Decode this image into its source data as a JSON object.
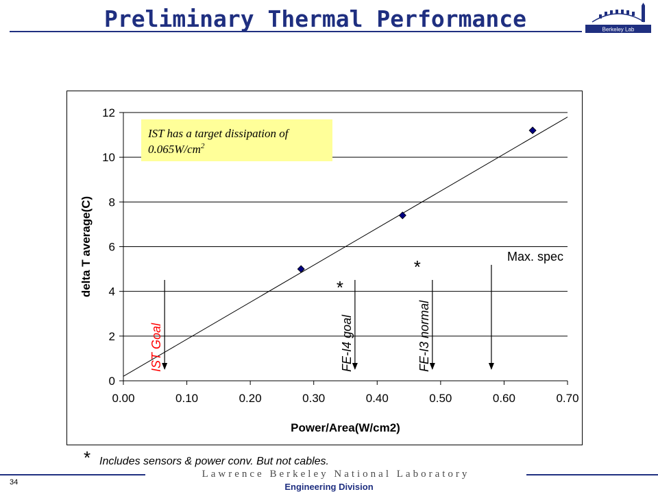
{
  "slide": {
    "title": "Preliminary Thermal Performance",
    "page_number": "34",
    "footer_division": "Engineering Division",
    "lab_banner": "Lawrence Berkeley National Laboratory",
    "logo_text": "Berkeley Lab",
    "footnote_star": "*",
    "footnote_text": "Includes sensors & power conv. But not cables."
  },
  "chart_data": {
    "type": "scatter",
    "xlabel": "Power/Area(W/cm2)",
    "ylabel": "delta T average(C)",
    "xlim": [
      0,
      0.7
    ],
    "ylim": [
      0,
      12
    ],
    "x_ticks": [
      "0.00",
      "0.10",
      "0.20",
      "0.30",
      "0.40",
      "0.50",
      "0.60",
      "0.70"
    ],
    "y_ticks": [
      "0",
      "2",
      "4",
      "6",
      "8",
      "10",
      "12"
    ],
    "grid": "horizontal",
    "series": [
      {
        "x": [
          0.28,
          0.44,
          0.645
        ],
        "y": [
          5.0,
          7.4,
          11.2
        ],
        "color": "#000080",
        "marker": "diamond"
      }
    ],
    "trendline": {
      "x": [
        0.0,
        0.7
      ],
      "y": [
        0.2,
        11.8
      ],
      "color": "#000000"
    },
    "note_box": {
      "text": "IST has a target dissipation of 0.065W/cm",
      "superscript": "2",
      "fill": "#ffff99"
    },
    "annotations": [
      {
        "label": "IST Goal",
        "x": 0.065,
        "star": "",
        "color": "#ff0000"
      },
      {
        "label": "FE-I4 goal",
        "x": 0.365,
        "star": "*",
        "color": "#000000"
      },
      {
        "label": "FE-I3 normal",
        "x": 0.487,
        "star": "*",
        "color": "#000000"
      },
      {
        "label": "Max. spec",
        "x": 0.58,
        "star": "",
        "color": "#000000"
      }
    ]
  }
}
